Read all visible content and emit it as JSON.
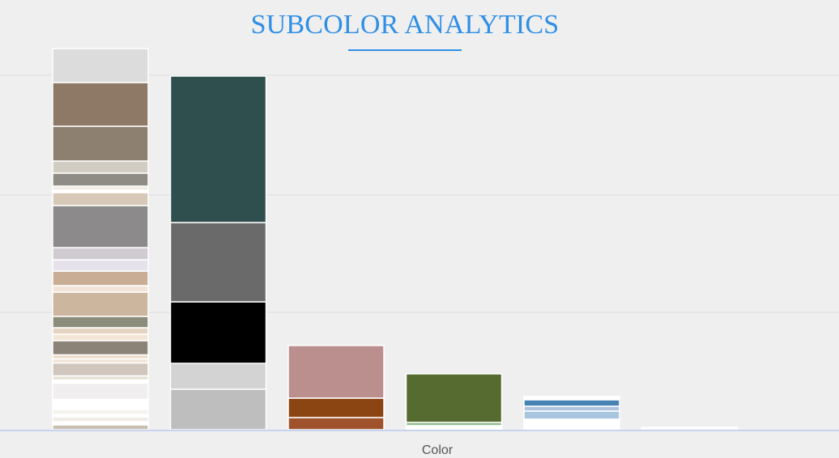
{
  "page": {
    "title": "SUBCOLOR ANALYTICS",
    "title_color": "#2f8fe6",
    "underline_color": "#2f8fe6",
    "background": "#efefef",
    "grid_color": "#e3e3e3",
    "axis_color": "#c8d4ee"
  },
  "chart_data": {
    "type": "bar",
    "stacked": true,
    "title": "SUBCOLOR ANALYTICS",
    "xlabel": "Color",
    "ylabel": "",
    "grid": true,
    "legend": "none",
    "ylim": [
      0,
      100
    ],
    "bar_border": "#ffffff",
    "bars": [
      {
        "segments": [
          {
            "color": "#c8bfb0",
            "value": 1.2
          },
          {
            "color": "#ffffff",
            "value": 0.8
          },
          {
            "color": "#f0ede6",
            "value": 1.2
          },
          {
            "color": "#ffffff",
            "value": 0.6
          },
          {
            "color": "#f4f2ec",
            "value": 1.2
          },
          {
            "color": "#ffffff",
            "value": 2.5
          },
          {
            "color": "#f0eeee",
            "value": 4.0
          },
          {
            "color": "#ffffff",
            "value": 0.8
          },
          {
            "color": "#e6e0d4",
            "value": 1.0
          },
          {
            "color": "#d0c6be",
            "value": 3.2
          },
          {
            "color": "#f0e4d6",
            "value": 1.0
          },
          {
            "color": "#ecddc9",
            "value": 1.0
          },
          {
            "color": "#8c8378",
            "value": 3.5
          },
          {
            "color": "#f3e6d6",
            "value": 1.6
          },
          {
            "color": "#e6d4c2",
            "value": 1.6
          },
          {
            "color": "#8c8c7a",
            "value": 2.8
          },
          {
            "color": "#ccb69e",
            "value": 6.0
          },
          {
            "color": "#f2e4d8",
            "value": 1.6
          },
          {
            "color": "#c9ae95",
            "value": 3.6
          },
          {
            "color": "#e6e2ec",
            "value": 2.8
          },
          {
            "color": "#d0cbd0",
            "value": 3.0
          },
          {
            "color": "#8c8a8a",
            "value": 10.4
          },
          {
            "color": "#d8c8b8",
            "value": 3.2
          },
          {
            "color": "#ffffff",
            "value": 0.6
          },
          {
            "color": "#f1ece6",
            "value": 1.0
          },
          {
            "color": "#8e8c84",
            "value": 3.2
          },
          {
            "color": "#d1cdc2",
            "value": 3.0
          },
          {
            "color": "#8e8070",
            "value": 8.6
          },
          {
            "color": "#8e7866",
            "value": 10.8
          },
          {
            "color": "#dddcdc",
            "value": 8.4
          }
        ]
      },
      {
        "segments": [
          {
            "color": "#bebebe",
            "value": 10.0
          },
          {
            "color": "#d3d3d3",
            "value": 6.4
          },
          {
            "color": "#000000",
            "value": 15.2
          },
          {
            "color": "#6a6a6a",
            "value": 19.6
          },
          {
            "color": "#2f4f4f",
            "value": 36.2
          }
        ]
      },
      {
        "segments": [
          {
            "color": "#a0522d",
            "value": 3.0
          },
          {
            "color": "#8b4513",
            "value": 4.8
          },
          {
            "color": "#bc8f8f",
            "value": 13.0
          }
        ]
      },
      {
        "segments": [
          {
            "color": "#ffffff",
            "value": 1.0
          },
          {
            "color": "#8fbc8f",
            "value": 0.8
          },
          {
            "color": "#556b2f",
            "value": 12.0
          }
        ]
      },
      {
        "segments": [
          {
            "color": "#ffffff",
            "value": 2.6
          },
          {
            "color": "#a8c6df",
            "value": 2.0
          },
          {
            "color": "#b0c4de",
            "value": 1.2
          },
          {
            "color": "#4682b4",
            "value": 1.6
          },
          {
            "color": "#ffffff",
            "value": 0.8
          }
        ]
      },
      {
        "segments": [
          {
            "color": "#f8f8f8",
            "value": 0.6
          }
        ]
      }
    ]
  }
}
